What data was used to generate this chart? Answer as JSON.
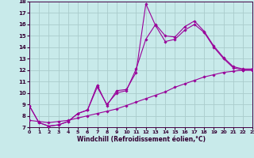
{
  "bg_color": "#c8eaea",
  "grid_color": "#aacccc",
  "line_color": "#990099",
  "xlim": [
    0,
    23
  ],
  "ylim": [
    7,
    18
  ],
  "xticks": [
    0,
    1,
    2,
    3,
    4,
    5,
    6,
    7,
    8,
    9,
    10,
    11,
    12,
    13,
    14,
    15,
    16,
    17,
    18,
    19,
    20,
    21,
    22,
    23
  ],
  "yticks": [
    7,
    8,
    9,
    10,
    11,
    12,
    13,
    14,
    15,
    16,
    17,
    18
  ],
  "xlabel": "Windchill (Refroidissement éolien,°C)",
  "series1_y": [
    8.9,
    7.4,
    7.1,
    7.2,
    7.5,
    8.2,
    8.5,
    10.7,
    8.9,
    10.2,
    10.3,
    11.8,
    17.8,
    15.9,
    14.5,
    14.7,
    15.5,
    16.0,
    15.3,
    14.0,
    13.0,
    12.2,
    12.0,
    12.0
  ],
  "series2_y": [
    8.9,
    7.4,
    7.1,
    7.2,
    7.5,
    8.2,
    8.5,
    10.5,
    9.0,
    10.0,
    10.2,
    12.1,
    14.7,
    16.0,
    15.0,
    14.9,
    15.8,
    16.3,
    15.4,
    14.1,
    13.1,
    12.3,
    12.1,
    12.1
  ],
  "series3_y": [
    7.6,
    7.5,
    7.4,
    7.5,
    7.6,
    7.8,
    8.0,
    8.2,
    8.4,
    8.6,
    8.9,
    9.2,
    9.5,
    9.8,
    10.1,
    10.5,
    10.8,
    11.1,
    11.4,
    11.6,
    11.8,
    11.9,
    12.0,
    12.0
  ]
}
